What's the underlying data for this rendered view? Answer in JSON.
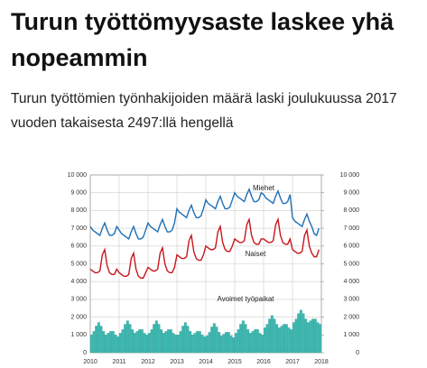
{
  "article": {
    "title": "Turun työttömyysaste laskee yhä nopeammin",
    "lead": "Turun työttömien työnhakijoiden määrä laski joulukuussa 2017 vuoden takaisesta 2497:llä hengellä"
  },
  "chart_data": {
    "type": "line",
    "x": [
      2010,
      2010.083,
      2010.167,
      2010.25,
      2010.333,
      2010.417,
      2010.5,
      2010.583,
      2010.667,
      2010.75,
      2010.833,
      2010.917,
      2011,
      2011.083,
      2011.167,
      2011.25,
      2011.333,
      2011.417,
      2011.5,
      2011.583,
      2011.667,
      2011.75,
      2011.833,
      2011.917,
      2012,
      2012.083,
      2012.167,
      2012.25,
      2012.333,
      2012.417,
      2012.5,
      2012.583,
      2012.667,
      2012.75,
      2012.833,
      2012.917,
      2013,
      2013.083,
      2013.167,
      2013.25,
      2013.333,
      2013.417,
      2013.5,
      2013.583,
      2013.667,
      2013.75,
      2013.833,
      2013.917,
      2014,
      2014.083,
      2014.167,
      2014.25,
      2014.333,
      2014.417,
      2014.5,
      2014.583,
      2014.667,
      2014.75,
      2014.833,
      2014.917,
      2015,
      2015.083,
      2015.167,
      2015.25,
      2015.333,
      2015.417,
      2015.5,
      2015.583,
      2015.667,
      2015.75,
      2015.833,
      2015.917,
      2016,
      2016.083,
      2016.167,
      2016.25,
      2016.333,
      2016.417,
      2016.5,
      2016.583,
      2016.667,
      2016.75,
      2016.833,
      2016.917,
      2017,
      2017.083,
      2017.167,
      2017.25,
      2017.333,
      2017.417,
      2017.5,
      2017.583,
      2017.667,
      2017.75,
      2017.833,
      2017.917
    ],
    "series": [
      {
        "name": "Miehet",
        "color": "#1f6fb5",
        "values": [
          7100,
          6900,
          6800,
          6700,
          6600,
          7000,
          7300,
          6900,
          6600,
          6600,
          6700,
          7100,
          6900,
          6700,
          6600,
          6500,
          6400,
          6800,
          7100,
          6700,
          6400,
          6400,
          6500,
          6900,
          7300,
          7100,
          7000,
          6900,
          6800,
          7200,
          7500,
          7100,
          6800,
          6800,
          6900,
          7300,
          8100,
          7900,
          7800,
          7700,
          7600,
          8000,
          8300,
          7900,
          7600,
          7600,
          7700,
          8100,
          8600,
          8400,
          8300,
          8200,
          8100,
          8500,
          8800,
          8400,
          8100,
          8100,
          8200,
          8600,
          9000,
          8800,
          8700,
          8600,
          8500,
          8900,
          9200,
          8800,
          8500,
          8500,
          8600,
          9000,
          8900,
          8700,
          8600,
          8500,
          8400,
          8800,
          9100,
          8700,
          8400,
          8400,
          8500,
          8900,
          7600,
          7400,
          7300,
          7200,
          7100,
          7500,
          7800,
          7400,
          7100,
          6700,
          6600,
          7000
        ]
      },
      {
        "name": "Naiset",
        "color": "#c8161d",
        "values": [
          4700,
          4600,
          4500,
          4500,
          4600,
          5500,
          5800,
          4900,
          4500,
          4400,
          4400,
          4700,
          4500,
          4400,
          4300,
          4300,
          4400,
          5300,
          5600,
          4700,
          4300,
          4200,
          4200,
          4500,
          4800,
          4700,
          4600,
          4600,
          4700,
          5600,
          5900,
          5000,
          4600,
          4500,
          4500,
          4800,
          5500,
          5400,
          5300,
          5300,
          5400,
          6300,
          6600,
          5700,
          5300,
          5200,
          5200,
          5500,
          6000,
          5900,
          5800,
          5800,
          5900,
          6800,
          7100,
          6200,
          5800,
          5700,
          5700,
          6000,
          6400,
          6300,
          6200,
          6200,
          6300,
          7200,
          7500,
          6600,
          6200,
          6100,
          6100,
          6400,
          6400,
          6300,
          6200,
          6200,
          6300,
          7200,
          7500,
          6600,
          6200,
          6100,
          6100,
          6400,
          5800,
          5700,
          5600,
          5600,
          5700,
          6600,
          6900,
          6000,
          5600,
          5400,
          5400,
          5800
        ]
      },
      {
        "name": "Avoimet työpaikat",
        "type": "bar",
        "color": "#3fb8b0",
        "values": [
          1000,
          1200,
          1500,
          1700,
          1500,
          1200,
          1000,
          1100,
          1200,
          1200,
          1000,
          900,
          1100,
          1300,
          1600,
          1800,
          1600,
          1300,
          1100,
          1200,
          1300,
          1300,
          1100,
          1000,
          1100,
          1300,
          1600,
          1800,
          1600,
          1300,
          1100,
          1200,
          1300,
          1300,
          1100,
          1000,
          1000,
          1200,
          1500,
          1700,
          1500,
          1200,
          1000,
          1100,
          1200,
          1200,
          1000,
          900,
          950,
          1150,
          1450,
          1650,
          1450,
          1150,
          950,
          1050,
          1150,
          1150,
          950,
          850,
          1100,
          1300,
          1600,
          1800,
          1600,
          1300,
          1100,
          1200,
          1300,
          1300,
          1100,
          1000,
          1400,
          1600,
          1900,
          2100,
          1900,
          1600,
          1400,
          1500,
          1600,
          1600,
          1400,
          1300,
          1700,
          1900,
          2200,
          2400,
          2200,
          1900,
          1700,
          1800,
          1900,
          1900,
          1700,
          1600
        ]
      }
    ],
    "xlim": [
      2010,
      2018
    ],
    "xticks": [
      2010,
      2011,
      2012,
      2013,
      2014,
      2015,
      2016,
      2017,
      2018
    ],
    "ylim": [
      0,
      10000
    ],
    "yticks": [
      0,
      {
        "value": 1000,
        "label": "1 000"
      },
      {
        "value": 2000,
        "label": "2 000"
      },
      {
        "value": 3000,
        "label": "3 000"
      },
      {
        "value": 4000,
        "label": "4 000"
      },
      {
        "value": 5000,
        "label": "5 000"
      },
      {
        "value": 6000,
        "label": "6 000"
      },
      {
        "value": 7000,
        "label": "7 000"
      },
      {
        "value": 8000,
        "label": "8 000"
      },
      {
        "value": 9000,
        "label": "9 000"
      },
      {
        "value": 10000,
        "label": "10 000"
      }
    ],
    "y2lim": [
      0,
      10000
    ],
    "y2ticks": [
      0,
      {
        "value": 1000,
        "label": "1 000"
      },
      {
        "value": 2000,
        "label": "2 000"
      },
      {
        "value": 3000,
        "label": "3 000"
      },
      {
        "value": 4000,
        "label": "4 000"
      },
      {
        "value": 5000,
        "label": "5 000"
      },
      {
        "value": 6000,
        "label": "6 000"
      },
      {
        "value": 7000,
        "label": "7 000"
      },
      {
        "value": 8000,
        "label": "8 000"
      },
      {
        "value": 9000,
        "label": "9 000"
      },
      {
        "value": 10000,
        "label": "10 000"
      }
    ],
    "grid": true
  }
}
